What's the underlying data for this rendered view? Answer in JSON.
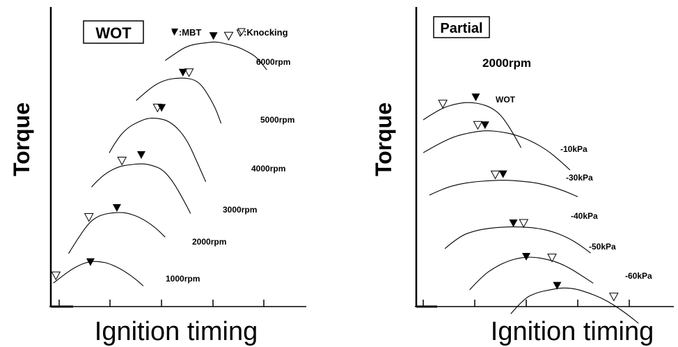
{
  "legend": {
    "mbt_label": "▼:MBT",
    "knocking_label": "▽:Knocking"
  },
  "chart_data": [
    {
      "type": "line",
      "title": "WOT",
      "xlabel": "Ignition timing",
      "ylabel": "Torque",
      "units": "relative (axes unlabeled)",
      "series": [
        {
          "name": "1000rpm",
          "x": [
            0.05,
            0.2,
            0.4,
            0.6,
            0.75,
            0.85,
            1.0,
            1.15,
            1.4,
            1.65,
            1.82
          ],
          "y": [
            0.4,
            0.5,
            0.63,
            0.72,
            0.76,
            0.77,
            0.76,
            0.73,
            0.63,
            0.48,
            0.35
          ],
          "mbt": [
            0.78,
            0.76
          ],
          "knocking": [
            0.1,
            0.53
          ]
        },
        {
          "name": "2000rpm",
          "x": [
            0.35,
            0.55,
            0.75,
            0.9,
            1.05,
            1.2,
            1.35,
            1.5,
            1.75,
            2.05,
            2.25
          ],
          "y": [
            0.9,
            1.18,
            1.42,
            1.52,
            1.57,
            1.59,
            1.6,
            1.59,
            1.52,
            1.35,
            1.18
          ],
          "mbt": [
            1.3,
            1.68
          ],
          "knocking": [
            0.75,
            1.52
          ]
        },
        {
          "name": "3000rpm",
          "x": [
            0.8,
            0.95,
            1.15,
            1.35,
            1.55,
            1.8,
            2.0,
            2.2,
            2.4,
            2.6,
            2.75
          ],
          "y": [
            2.03,
            2.17,
            2.3,
            2.38,
            2.41,
            2.43,
            2.4,
            2.33,
            2.13,
            1.83,
            1.58
          ],
          "mbt": [
            1.78,
            2.58
          ],
          "knocking": [
            1.4,
            2.48
          ]
        },
        {
          "name": "4000rpm",
          "x": [
            1.15,
            1.3,
            1.5,
            1.7,
            1.9,
            2.1,
            2.3,
            2.5,
            2.7,
            2.9,
            3.05
          ],
          "y": [
            2.61,
            2.84,
            3.03,
            3.13,
            3.2,
            3.2,
            3.16,
            3.03,
            2.8,
            2.41,
            2.12
          ],
          "mbt": [
            2.18,
            3.38
          ],
          "knocking": [
            2.1,
            3.38
          ]
        },
        {
          "name": "5000rpm",
          "x": [
            1.68,
            1.9,
            2.1,
            2.3,
            2.5,
            2.65,
            2.8,
            2.95,
            3.1,
            3.25,
            3.35
          ],
          "y": [
            3.5,
            3.67,
            3.79,
            3.86,
            3.88,
            3.88,
            3.86,
            3.78,
            3.59,
            3.35,
            3.11
          ],
          "mbt": [
            2.6,
            3.98
          ],
          "knocking": [
            2.72,
            3.98
          ]
        },
        {
          "name": "6000rpm",
          "x": [
            2.25,
            2.45,
            2.65,
            2.85,
            3.05,
            3.25,
            3.45,
            3.65,
            3.85,
            4.05,
            4.25
          ],
          "y": [
            4.18,
            4.3,
            4.41,
            4.46,
            4.48,
            4.5,
            4.46,
            4.42,
            4.34,
            4.24,
            4.02
          ],
          "mbt": [
            3.2,
            4.6
          ],
          "knocking": [
            3.5,
            4.6
          ]
        }
      ]
    },
    {
      "type": "line",
      "title": "Partial",
      "subtitle": "2000rpm",
      "xlabel": "Ignition timing",
      "ylabel": "Torque",
      "units": "relative (axes unlabeled)",
      "series": [
        {
          "name": "WOT",
          "x": [
            0.0,
            0.2,
            0.4,
            0.6,
            0.8,
            0.95,
            1.1,
            1.3,
            1.5,
            1.7,
            1.9
          ],
          "y": [
            3.35,
            3.47,
            3.57,
            3.63,
            3.66,
            3.66,
            3.64,
            3.58,
            3.45,
            3.18,
            2.85
          ],
          "mbt": [
            1.02,
            3.76
          ],
          "knocking": [
            0.38,
            3.64
          ]
        },
        {
          "name": "-10kPa",
          "x": [
            0.0,
            0.3,
            0.6,
            0.9,
            1.2,
            1.5,
            1.8,
            2.1,
            2.4,
            2.65,
            2.85
          ],
          "y": [
            2.76,
            2.92,
            3.05,
            3.12,
            3.16,
            3.14,
            3.08,
            2.97,
            2.81,
            2.62,
            2.45
          ],
          "mbt": [
            1.2,
            3.26
          ],
          "knocking": [
            1.06,
            3.26
          ]
        },
        {
          "name": "-30kPa",
          "x": [
            0.12,
            0.4,
            0.7,
            1.0,
            1.3,
            1.6,
            1.9,
            2.2,
            2.5,
            2.75,
            3.0
          ],
          "y": [
            2.0,
            2.12,
            2.2,
            2.24,
            2.26,
            2.27,
            2.25,
            2.22,
            2.15,
            2.07,
            1.97
          ],
          "mbt": [
            1.55,
            2.38
          ],
          "knocking": [
            1.4,
            2.37
          ]
        },
        {
          "name": "-40kPa",
          "x": [
            0.42,
            0.7,
            1.0,
            1.3,
            1.6,
            1.9,
            2.2,
            2.5,
            2.8,
            3.05,
            3.25
          ],
          "y": [
            1.04,
            1.26,
            1.36,
            1.41,
            1.43,
            1.43,
            1.41,
            1.35,
            1.24,
            1.1,
            0.96
          ],
          "mbt": [
            1.75,
            1.5
          ],
          "knocking": [
            1.95,
            1.5
          ]
        },
        {
          "name": "-50kPa",
          "x": [
            0.9,
            1.15,
            1.4,
            1.65,
            1.9,
            2.15,
            2.4,
            2.65,
            2.9,
            3.1,
            3.3
          ],
          "y": [
            0.3,
            0.55,
            0.71,
            0.82,
            0.88,
            0.89,
            0.85,
            0.78,
            0.66,
            0.54,
            0.42
          ],
          "mbt": [
            2.0,
            0.9
          ],
          "knocking": [
            2.5,
            0.88
          ]
        },
        {
          "name": "-60kPa",
          "x": [
            1.7,
            1.95,
            2.2,
            2.45,
            2.7,
            2.95,
            3.2,
            3.45,
            3.7,
            3.95,
            4.18
          ],
          "y": [
            -0.13,
            0.14,
            0.25,
            0.3,
            0.34,
            0.32,
            0.25,
            0.16,
            0.03,
            -0.13,
            -0.3
          ],
          "mbt": [
            2.6,
            0.38
          ],
          "knocking": [
            3.7,
            0.18
          ]
        }
      ]
    }
  ]
}
